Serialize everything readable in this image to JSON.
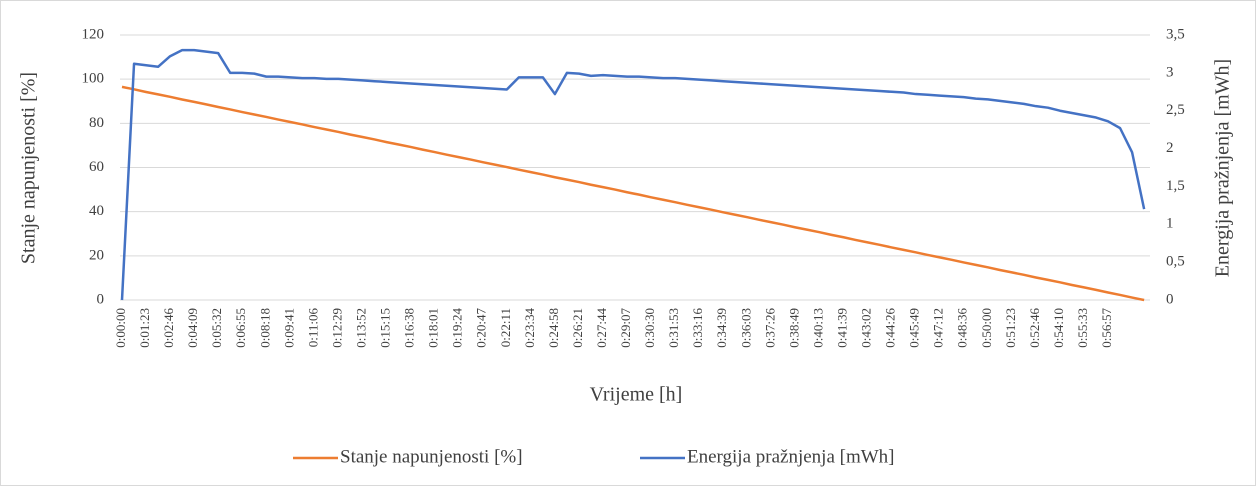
{
  "chart_data": {
    "type": "line",
    "x_label": "Vrijeme [h]",
    "y_label": "Stanje napunjenosti [%]",
    "y2_label": "Energija pražnjenja [mWh]",
    "categories": [
      "0:00:00",
      null,
      "0:01:23",
      null,
      "0:02:46",
      null,
      "0:04:09",
      null,
      "0:05:32",
      null,
      "0:06:55",
      null,
      "0:08:18",
      null,
      "0:09:41",
      null,
      "0:11:06",
      null,
      "0:12:29",
      null,
      "0:13:52",
      null,
      "0:15:15",
      null,
      "0:16:38",
      null,
      "0:18:01",
      null,
      "0:19:24",
      null,
      "0:20:47",
      null,
      "0:22:11",
      null,
      "0:23:34",
      null,
      "0:24:58",
      null,
      "0:26:21",
      null,
      "0:27:44",
      null,
      "0:29:07",
      null,
      "0:30:30",
      null,
      "0:31:53",
      null,
      "0:33:16",
      null,
      "0:34:39",
      null,
      "0:36:03",
      null,
      "0:37:26",
      null,
      "0:38:49",
      null,
      "0:40:13",
      null,
      "0:41:39",
      null,
      "0:43:02",
      null,
      "0:44:26",
      null,
      "0:45:49",
      null,
      "0:47:12",
      null,
      "0:48:36",
      null,
      "0:50:00",
      null,
      "0:51:23",
      null,
      "0:52:46",
      null,
      "0:54:10",
      null,
      "0:55:33",
      null,
      "0:56:57",
      null,
      null,
      null
    ],
    "series": [
      {
        "name": "Stanje napunjenosti [%]",
        "color": "#ed7d31",
        "values": [
          96.5,
          95.4,
          94.2,
          93.1,
          92.0,
          90.8,
          89.7,
          88.6,
          87.4,
          86.3,
          85.1,
          84.0,
          82.9,
          81.7,
          80.6,
          79.5,
          78.3,
          77.2,
          76.1,
          74.9,
          73.8,
          72.7,
          71.5,
          70.4,
          69.3,
          68.1,
          67.0,
          65.8,
          64.7,
          63.6,
          62.4,
          61.3,
          60.2,
          59.0,
          57.9,
          56.8,
          55.6,
          54.5,
          53.4,
          52.2,
          51.1,
          50.0,
          48.8,
          47.7,
          46.5,
          45.4,
          44.3,
          43.1,
          42.0,
          40.9,
          39.7,
          38.6,
          37.5,
          36.3,
          35.2,
          34.1,
          32.9,
          31.8,
          30.7,
          29.5,
          28.4,
          27.2,
          26.1,
          25.0,
          23.8,
          22.7,
          21.6,
          20.4,
          19.3,
          18.2,
          17.0,
          15.9,
          14.8,
          13.6,
          12.5,
          11.4,
          10.2,
          9.1,
          8.0,
          6.8,
          5.7,
          4.6,
          3.4,
          2.3,
          1.1,
          0
        ]
      },
      {
        "name": "Energija pražnjenja [mWh]",
        "color": "#4472c4",
        "axis": "y2",
        "values": [
          0,
          3.12,
          3.1,
          3.08,
          3.22,
          3.3,
          3.3,
          3.28,
          3.26,
          3.0,
          3.0,
          2.99,
          2.95,
          2.95,
          2.94,
          2.93,
          2.93,
          2.92,
          2.92,
          2.91,
          2.9,
          2.89,
          2.88,
          2.87,
          2.86,
          2.85,
          2.84,
          2.83,
          2.82,
          2.81,
          2.8,
          2.79,
          2.78,
          2.94,
          2.94,
          2.94,
          2.72,
          3.0,
          2.99,
          2.96,
          2.97,
          2.96,
          2.95,
          2.95,
          2.94,
          2.93,
          2.93,
          2.92,
          2.91,
          2.9,
          2.89,
          2.88,
          2.87,
          2.86,
          2.85,
          2.84,
          2.83,
          2.82,
          2.81,
          2.8,
          2.79,
          2.78,
          2.77,
          2.76,
          2.75,
          2.74,
          2.72,
          2.71,
          2.7,
          2.69,
          2.68,
          2.66,
          2.65,
          2.63,
          2.61,
          2.59,
          2.56,
          2.54,
          2.5,
          2.47,
          2.44,
          2.41,
          2.36,
          2.27,
          1.95,
          1.2
        ]
      }
    ],
    "ylim": [
      0,
      120
    ],
    "yticks": [
      0,
      20,
      40,
      60,
      80,
      100,
      120
    ],
    "y2lim": [
      0,
      3.5
    ],
    "y2ticks": [
      0,
      {
        "value": 0.5,
        "label": "0,5"
      },
      1,
      {
        "value": 1.5,
        "label": "1,5"
      },
      2,
      {
        "value": 2.5,
        "label": "2,5"
      },
      3,
      {
        "value": 3.5,
        "label": "3,5"
      }
    ],
    "grid": true,
    "legend": "bottom"
  }
}
